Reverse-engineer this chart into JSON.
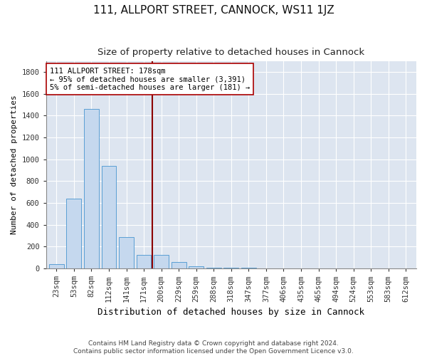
{
  "title1": "111, ALLPORT STREET, CANNOCK, WS11 1JZ",
  "title2": "Size of property relative to detached houses in Cannock",
  "xlabel": "Distribution of detached houses by size in Cannock",
  "ylabel": "Number of detached properties",
  "categories": [
    "23sqm",
    "53sqm",
    "82sqm",
    "112sqm",
    "141sqm",
    "171sqm",
    "200sqm",
    "229sqm",
    "259sqm",
    "288sqm",
    "318sqm",
    "347sqm",
    "377sqm",
    "406sqm",
    "435sqm",
    "465sqm",
    "494sqm",
    "524sqm",
    "553sqm",
    "583sqm",
    "612sqm"
  ],
  "values": [
    40,
    640,
    1460,
    940,
    285,
    125,
    125,
    60,
    22,
    10,
    8,
    5,
    3,
    2,
    0,
    0,
    0,
    0,
    0,
    0,
    0
  ],
  "bar_color": "#c5d8ee",
  "bar_edge_color": "#5a9fd4",
  "vline_x": 5.5,
  "vline_color": "#8b0000",
  "annotation_text": "111 ALLPORT STREET: 178sqm\n← 95% of detached houses are smaller (3,391)\n5% of semi-detached houses are larger (181) →",
  "annotation_box_color": "#ffffff",
  "annotation_box_edge": "#aa0000",
  "ylim": [
    0,
    1900
  ],
  "yticks": [
    0,
    200,
    400,
    600,
    800,
    1000,
    1200,
    1400,
    1600,
    1800
  ],
  "background_color": "#dde5f0",
  "fig_background": "#ffffff",
  "footer1": "Contains HM Land Registry data © Crown copyright and database right 2024.",
  "footer2": "Contains public sector information licensed under the Open Government Licence v3.0.",
  "title1_fontsize": 11,
  "title2_fontsize": 9.5,
  "xlabel_fontsize": 9,
  "ylabel_fontsize": 8,
  "tick_fontsize": 7.5,
  "annotation_fontsize": 7.5,
  "footer_fontsize": 6.5
}
